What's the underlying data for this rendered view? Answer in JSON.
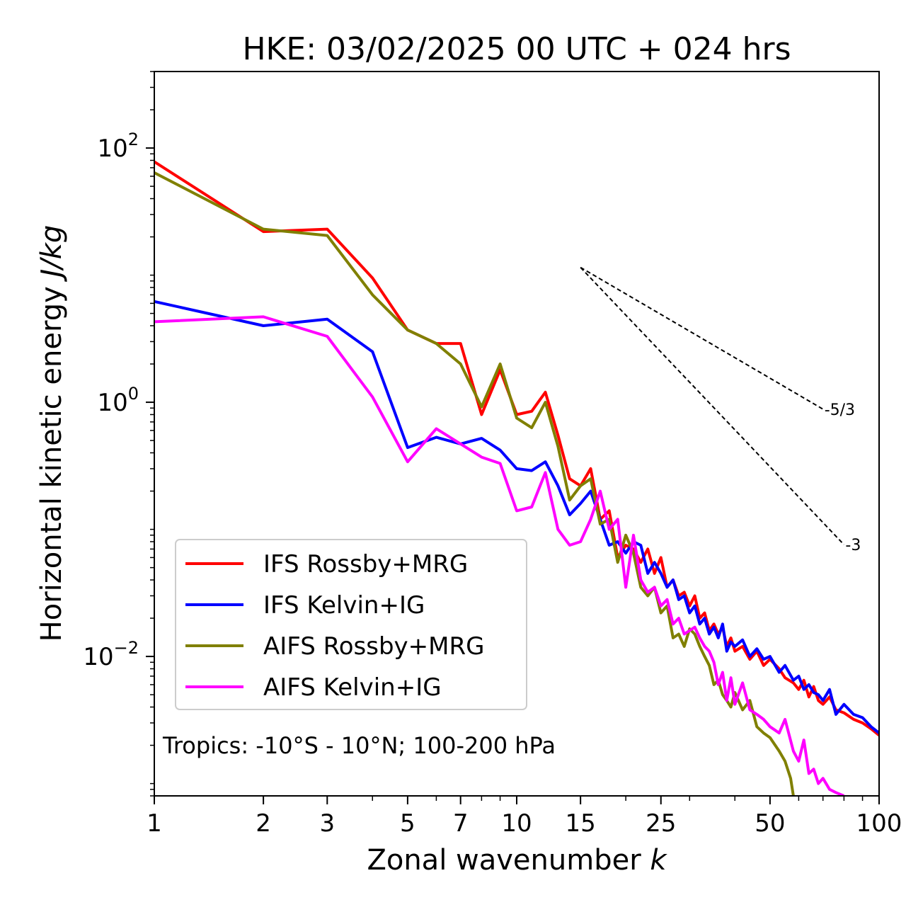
{
  "chart_data": {
    "type": "line",
    "title": "HKE: 03/02/2025 00 UTC + 024 hrs",
    "xlabel": "Zonal wavenumber",
    "xlabel_var": "k",
    "ylabel": "Horizontal kinetic energy",
    "ylabel_unit": "J/kg",
    "xscale": "log",
    "yscale": "log",
    "xlim": [
      1,
      100
    ],
    "ylim": [
      0.0008,
      400
    ],
    "xticks": [
      1,
      2,
      3,
      5,
      7,
      10,
      15,
      25,
      50,
      100
    ],
    "xtick_labels": [
      "1",
      "2",
      "3",
      "5",
      "7",
      "10",
      "15",
      "25",
      "50",
      "100"
    ],
    "yticks": [
      {
        "value": 100,
        "base": "10",
        "exp": "2"
      },
      {
        "value": 1,
        "base": "10",
        "exp": "0"
      },
      {
        "value": 0.01,
        "base": "10",
        "exp": "−2"
      }
    ],
    "annotation": "Tropics: -10°S - 10°N; 100-200 hPa",
    "legend_position": "lower-left",
    "reference_lines": [
      {
        "label": "-5/3",
        "slope": -1.6667,
        "x_start": 15,
        "x_end": 70,
        "y_start": 11.5,
        "color": "#000000"
      },
      {
        "label": "-3",
        "slope": -3,
        "x_start": 15,
        "x_end": 80,
        "y_start": 11.5,
        "color": "#000000"
      }
    ],
    "series": [
      {
        "name": "IFS Rossby+MRG",
        "color": "#ff0000",
        "points": [
          [
            1,
            78
          ],
          [
            2,
            22
          ],
          [
            3,
            23
          ],
          [
            4,
            9.5
          ],
          [
            5,
            3.7
          ],
          [
            6,
            2.9
          ],
          [
            7,
            2.9
          ],
          [
            8,
            0.8
          ],
          [
            9,
            1.8
          ],
          [
            10,
            0.8
          ],
          [
            11,
            0.85
          ],
          [
            12,
            1.2
          ],
          [
            13,
            0.55
          ],
          [
            14,
            0.25
          ],
          [
            15,
            0.22
          ],
          [
            16,
            0.3
          ],
          [
            17,
            0.12
          ],
          [
            18,
            0.14
          ],
          [
            19,
            0.06
          ],
          [
            20,
            0.075
          ],
          [
            21,
            0.07
          ],
          [
            22,
            0.055
          ],
          [
            23,
            0.07
          ],
          [
            24,
            0.045
          ],
          [
            25,
            0.06
          ],
          [
            26,
            0.035
          ],
          [
            27,
            0.04
          ],
          [
            28,
            0.03
          ],
          [
            29,
            0.032
          ],
          [
            30,
            0.025
          ],
          [
            31,
            0.03
          ],
          [
            32,
            0.02
          ],
          [
            33,
            0.022
          ],
          [
            34,
            0.016
          ],
          [
            35,
            0.018
          ],
          [
            36,
            0.015
          ],
          [
            37,
            0.017
          ],
          [
            38,
            0.012
          ],
          [
            39,
            0.014
          ],
          [
            40,
            0.011
          ],
          [
            42,
            0.012
          ],
          [
            44,
            0.0095
          ],
          [
            46,
            0.011
          ],
          [
            48,
            0.0085
          ],
          [
            50,
            0.0095
          ],
          [
            53,
            0.008
          ],
          [
            55,
            0.0068
          ],
          [
            58,
            0.0062
          ],
          [
            60,
            0.0055
          ],
          [
            62,
            0.0065
          ],
          [
            64,
            0.0048
          ],
          [
            66,
            0.0058
          ],
          [
            68,
            0.0045
          ],
          [
            70,
            0.0042
          ],
          [
            73,
            0.0048
          ],
          [
            76,
            0.0038
          ],
          [
            80,
            0.0036
          ],
          [
            85,
            0.0032
          ],
          [
            90,
            0.003
          ],
          [
            95,
            0.0027
          ],
          [
            100,
            0.0024
          ]
        ]
      },
      {
        "name": "IFS Kelvin+IG",
        "color": "#0000ff",
        "points": [
          [
            1,
            6.2
          ],
          [
            2,
            4.0
          ],
          [
            3,
            4.5
          ],
          [
            4,
            2.5
          ],
          [
            5,
            0.44
          ],
          [
            6,
            0.53
          ],
          [
            7,
            0.47
          ],
          [
            8,
            0.52
          ],
          [
            9,
            0.42
          ],
          [
            10,
            0.3
          ],
          [
            11,
            0.29
          ],
          [
            12,
            0.34
          ],
          [
            13,
            0.22
          ],
          [
            14,
            0.13
          ],
          [
            15,
            0.16
          ],
          [
            16,
            0.2
          ],
          [
            17,
            0.12
          ],
          [
            18,
            0.075
          ],
          [
            19,
            0.08
          ],
          [
            20,
            0.065
          ],
          [
            21,
            0.08
          ],
          [
            22,
            0.075
          ],
          [
            23,
            0.045
          ],
          [
            24,
            0.055
          ],
          [
            25,
            0.045
          ],
          [
            26,
            0.035
          ],
          [
            27,
            0.04
          ],
          [
            28,
            0.028
          ],
          [
            29,
            0.03
          ],
          [
            30,
            0.022
          ],
          [
            31,
            0.025
          ],
          [
            32,
            0.018
          ],
          [
            33,
            0.02
          ],
          [
            34,
            0.015
          ],
          [
            35,
            0.017
          ],
          [
            36,
            0.014
          ],
          [
            37,
            0.018
          ],
          [
            38,
            0.011
          ],
          [
            39,
            0.013
          ],
          [
            40,
            0.012
          ],
          [
            42,
            0.0135
          ],
          [
            44,
            0.01
          ],
          [
            46,
            0.0115
          ],
          [
            48,
            0.0095
          ],
          [
            50,
            0.01
          ],
          [
            53,
            0.0075
          ],
          [
            55,
            0.0085
          ],
          [
            58,
            0.0065
          ],
          [
            60,
            0.007
          ],
          [
            62,
            0.0055
          ],
          [
            64,
            0.006
          ],
          [
            66,
            0.0052
          ],
          [
            68,
            0.005
          ],
          [
            70,
            0.0045
          ],
          [
            73,
            0.0055
          ],
          [
            76,
            0.0035
          ],
          [
            80,
            0.0042
          ],
          [
            85,
            0.0035
          ],
          [
            90,
            0.0033
          ],
          [
            95,
            0.0028
          ],
          [
            100,
            0.0025
          ]
        ]
      },
      {
        "name": "AIFS Rossby+MRG",
        "color": "#808000",
        "points": [
          [
            1,
            64
          ],
          [
            2,
            23
          ],
          [
            3,
            20.5
          ],
          [
            4,
            7
          ],
          [
            5,
            3.7
          ],
          [
            6,
            2.9
          ],
          [
            7,
            2.0
          ],
          [
            8,
            0.92
          ],
          [
            9,
            2.0
          ],
          [
            10,
            0.75
          ],
          [
            11,
            0.63
          ],
          [
            12,
            1.0
          ],
          [
            13,
            0.45
          ],
          [
            14,
            0.17
          ],
          [
            15,
            0.22
          ],
          [
            16,
            0.25
          ],
          [
            17,
            0.11
          ],
          [
            18,
            0.12
          ],
          [
            19,
            0.055
          ],
          [
            20,
            0.09
          ],
          [
            21,
            0.065
          ],
          [
            22,
            0.035
          ],
          [
            23,
            0.03
          ],
          [
            24,
            0.035
          ],
          [
            25,
            0.022
          ],
          [
            26,
            0.025
          ],
          [
            27,
            0.014
          ],
          [
            28,
            0.015
          ],
          [
            29,
            0.012
          ],
          [
            30,
            0.0165
          ],
          [
            31,
            0.015
          ],
          [
            32,
            0.012
          ],
          [
            33,
            0.01
          ],
          [
            34,
            0.0085
          ],
          [
            35,
            0.006
          ],
          [
            36,
            0.0065
          ],
          [
            37,
            0.005
          ],
          [
            38,
            0.0045
          ],
          [
            39,
            0.004
          ],
          [
            40,
            0.0052
          ],
          [
            42,
            0.0038
          ],
          [
            44,
            0.0045
          ],
          [
            46,
            0.0028
          ],
          [
            48,
            0.0025
          ],
          [
            50,
            0.0023
          ],
          [
            53,
            0.0018
          ],
          [
            55,
            0.0015
          ],
          [
            57,
            0.0011
          ],
          [
            58,
            0.0008
          ]
        ]
      },
      {
        "name": "AIFS Kelvin+IG",
        "color": "#ff00ff",
        "points": [
          [
            1,
            4.3
          ],
          [
            2,
            4.7
          ],
          [
            3,
            3.3
          ],
          [
            4,
            1.1
          ],
          [
            5,
            0.34
          ],
          [
            6,
            0.62
          ],
          [
            7,
            0.47
          ],
          [
            8,
            0.37
          ],
          [
            9,
            0.33
          ],
          [
            10,
            0.14
          ],
          [
            11,
            0.15
          ],
          [
            12,
            0.28
          ],
          [
            13,
            0.1
          ],
          [
            14,
            0.075
          ],
          [
            15,
            0.08
          ],
          [
            16,
            0.12
          ],
          [
            17,
            0.2
          ],
          [
            18,
            0.1
          ],
          [
            19,
            0.12
          ],
          [
            20,
            0.035
          ],
          [
            21,
            0.09
          ],
          [
            22,
            0.04
          ],
          [
            23,
            0.032
          ],
          [
            24,
            0.035
          ],
          [
            25,
            0.025
          ],
          [
            26,
            0.028
          ],
          [
            27,
            0.018
          ],
          [
            28,
            0.02
          ],
          [
            29,
            0.015
          ],
          [
            30,
            0.016
          ],
          [
            31,
            0.017
          ],
          [
            32,
            0.014
          ],
          [
            33,
            0.012
          ],
          [
            34,
            0.011
          ],
          [
            35,
            0.009
          ],
          [
            36,
            0.006
          ],
          [
            37,
            0.0075
          ],
          [
            38,
            0.0045
          ],
          [
            39,
            0.0068
          ],
          [
            40,
            0.0042
          ],
          [
            42,
            0.0062
          ],
          [
            44,
            0.0038
          ],
          [
            46,
            0.0035
          ],
          [
            48,
            0.0032
          ],
          [
            50,
            0.0028
          ],
          [
            53,
            0.0025
          ],
          [
            55,
            0.0032
          ],
          [
            58,
            0.0018
          ],
          [
            60,
            0.0015
          ],
          [
            62,
            0.0022
          ],
          [
            64,
            0.0012
          ],
          [
            66,
            0.0013
          ],
          [
            68,
            0.001
          ],
          [
            70,
            0.0011
          ],
          [
            73,
            0.0009
          ],
          [
            76,
            0.00085
          ],
          [
            80,
            0.0008
          ]
        ]
      }
    ]
  }
}
